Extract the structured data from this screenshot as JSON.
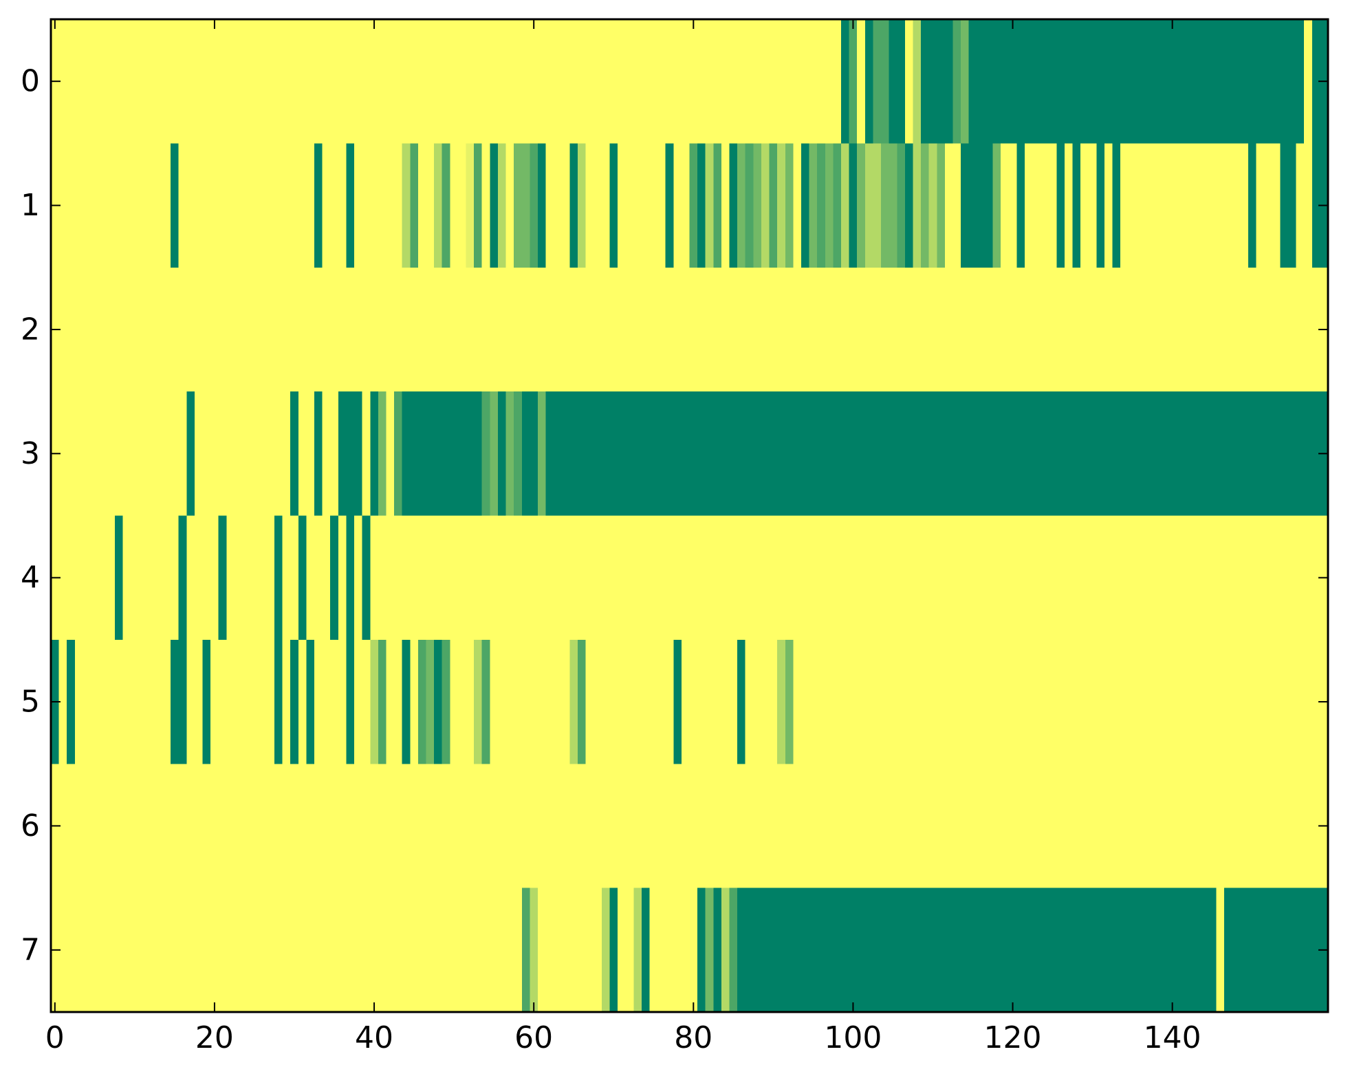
{
  "chart_data": {
    "type": "heatmap",
    "colormap": "summer_r",
    "colors": {
      "low": "#ffff66",
      "high": "#008066"
    },
    "value_range": [
      0,
      1
    ],
    "n_columns": 160,
    "rows": [
      0,
      1,
      2,
      3,
      4,
      5,
      6,
      7
    ],
    "xlim": [
      -0.5,
      159.5
    ],
    "ylim": [
      -0.5,
      7.5
    ],
    "x_ticks": [
      0,
      20,
      40,
      60,
      80,
      100,
      120,
      140
    ],
    "x_tick_labels": [
      "0",
      "20",
      "40",
      "60",
      "80",
      "100",
      "120",
      "140"
    ],
    "y_ticks": [
      0,
      1,
      2,
      3,
      4,
      5,
      6,
      7
    ],
    "y_tick_labels": [
      "0",
      "1",
      "2",
      "3",
      "4",
      "5",
      "6",
      "7"
    ],
    "grid": false,
    "segments_note_fields": [
      "row",
      "start_column",
      "end_column_exclusive",
      "value"
    ],
    "segments": [
      [
        0,
        99,
        100,
        1
      ],
      [
        0,
        100,
        101,
        0.7
      ],
      [
        0,
        101,
        102,
        0
      ],
      [
        0,
        102,
        103,
        1
      ],
      [
        0,
        103,
        105,
        0.7
      ],
      [
        0,
        105,
        106,
        1
      ],
      [
        0,
        106,
        107,
        1
      ],
      [
        0,
        107,
        108,
        0
      ],
      [
        0,
        108,
        109,
        0.3
      ],
      [
        0,
        109,
        113,
        1
      ],
      [
        0,
        113,
        114,
        0.7
      ],
      [
        0,
        114,
        115,
        0.55
      ],
      [
        0,
        115,
        157,
        1
      ],
      [
        0,
        158,
        160,
        1
      ],
      [
        1,
        15,
        16,
        1
      ],
      [
        1,
        33,
        34,
        1
      ],
      [
        1,
        37,
        38,
        1
      ],
      [
        1,
        44,
        45,
        0.3
      ],
      [
        1,
        45,
        46,
        0.7
      ],
      [
        1,
        48,
        49,
        0.3
      ],
      [
        1,
        49,
        50,
        0.7
      ],
      [
        1,
        52,
        53,
        0.1
      ],
      [
        1,
        53,
        54,
        0.7
      ],
      [
        1,
        55,
        56,
        1
      ],
      [
        1,
        56,
        57,
        0.3
      ],
      [
        1,
        58,
        60,
        0.55
      ],
      [
        1,
        60,
        61,
        0.7
      ],
      [
        1,
        61,
        62,
        1
      ],
      [
        1,
        65,
        66,
        1
      ],
      [
        1,
        66,
        67,
        0.3
      ],
      [
        1,
        70,
        71,
        1
      ],
      [
        1,
        77,
        78,
        1
      ],
      [
        1,
        80,
        81,
        0.7
      ],
      [
        1,
        81,
        82,
        1
      ],
      [
        1,
        82,
        83,
        0.3
      ],
      [
        1,
        83,
        84,
        0.7
      ],
      [
        1,
        85,
        86,
        1
      ],
      [
        1,
        86,
        87,
        0.55
      ],
      [
        1,
        87,
        88,
        0.7
      ],
      [
        1,
        88,
        89,
        0.55
      ],
      [
        1,
        89,
        90,
        0.3
      ],
      [
        1,
        90,
        91,
        0.7
      ],
      [
        1,
        91,
        92,
        0.3
      ],
      [
        1,
        92,
        93,
        0.55
      ],
      [
        1,
        94,
        95,
        1
      ],
      [
        1,
        95,
        96,
        0.55
      ],
      [
        1,
        96,
        97,
        0.7
      ],
      [
        1,
        97,
        98,
        0.55
      ],
      [
        1,
        98,
        99,
        0.7
      ],
      [
        1,
        99,
        100,
        0.3
      ],
      [
        1,
        100,
        101,
        1
      ],
      [
        1,
        101,
        102,
        0.55
      ],
      [
        1,
        102,
        103,
        0.3
      ],
      [
        1,
        103,
        104,
        0.3
      ],
      [
        1,
        104,
        105,
        0.55
      ],
      [
        1,
        105,
        106,
        0.55
      ],
      [
        1,
        106,
        107,
        0.7
      ],
      [
        1,
        107,
        108,
        1
      ],
      [
        1,
        108,
        109,
        0.3
      ],
      [
        1,
        109,
        110,
        0.55
      ],
      [
        1,
        110,
        111,
        0.3
      ],
      [
        1,
        111,
        112,
        0.55
      ],
      [
        1,
        114,
        118,
        1
      ],
      [
        1,
        118,
        119,
        0.55
      ],
      [
        1,
        121,
        122,
        1
      ],
      [
        1,
        126,
        127,
        1
      ],
      [
        1,
        128,
        129,
        1
      ],
      [
        1,
        131,
        132,
        1
      ],
      [
        1,
        133,
        134,
        1
      ],
      [
        1,
        150,
        151,
        1
      ],
      [
        1,
        154,
        156,
        1
      ],
      [
        1,
        158,
        160,
        1
      ],
      [
        3,
        17,
        18,
        1
      ],
      [
        3,
        30,
        31,
        1
      ],
      [
        3,
        33,
        34,
        1
      ],
      [
        3,
        36,
        39,
        1
      ],
      [
        3,
        40,
        41,
        1
      ],
      [
        3,
        41,
        42,
        0.55
      ],
      [
        3,
        43,
        44,
        0.7
      ],
      [
        3,
        44,
        54,
        1
      ],
      [
        3,
        54,
        55,
        0.7
      ],
      [
        3,
        55,
        56,
        0.55
      ],
      [
        3,
        56,
        57,
        1
      ],
      [
        3,
        57,
        58,
        0.55
      ],
      [
        3,
        58,
        59,
        0.7
      ],
      [
        3,
        59,
        61,
        1
      ],
      [
        3,
        61,
        62,
        0.55
      ],
      [
        3,
        62,
        160,
        1
      ],
      [
        4,
        8,
        9,
        1
      ],
      [
        4,
        16,
        17,
        1
      ],
      [
        4,
        21,
        22,
        1
      ],
      [
        4,
        28,
        29,
        1
      ],
      [
        4,
        31,
        32,
        1
      ],
      [
        4,
        35,
        36,
        1
      ],
      [
        4,
        37,
        38,
        1
      ],
      [
        4,
        39,
        40,
        1
      ],
      [
        5,
        0,
        1,
        1
      ],
      [
        5,
        2,
        3,
        1
      ],
      [
        5,
        15,
        17,
        1
      ],
      [
        5,
        19,
        20,
        1
      ],
      [
        5,
        28,
        29,
        1
      ],
      [
        5,
        30,
        31,
        1
      ],
      [
        5,
        32,
        33,
        1
      ],
      [
        5,
        37,
        38,
        1
      ],
      [
        5,
        40,
        41,
        0.3
      ],
      [
        5,
        41,
        42,
        0.7
      ],
      [
        5,
        44,
        45,
        1
      ],
      [
        5,
        46,
        47,
        0.7
      ],
      [
        5,
        47,
        48,
        0.55
      ],
      [
        5,
        48,
        49,
        1
      ],
      [
        5,
        49,
        50,
        0.7
      ],
      [
        5,
        53,
        54,
        0.3
      ],
      [
        5,
        54,
        55,
        0.7
      ],
      [
        5,
        65,
        66,
        0.3
      ],
      [
        5,
        66,
        67,
        0.7
      ],
      [
        5,
        78,
        79,
        1
      ],
      [
        5,
        86,
        87,
        1
      ],
      [
        5,
        91,
        92,
        0.3
      ],
      [
        5,
        92,
        93,
        0.55
      ],
      [
        7,
        59,
        60,
        0.7
      ],
      [
        7,
        60,
        61,
        0.3
      ],
      [
        7,
        69,
        70,
        0.3
      ],
      [
        7,
        70,
        71,
        1
      ],
      [
        7,
        73,
        74,
        0.3
      ],
      [
        7,
        74,
        75,
        1
      ],
      [
        7,
        81,
        82,
        1
      ],
      [
        7,
        82,
        83,
        0.55
      ],
      [
        7,
        83,
        84,
        1
      ],
      [
        7,
        84,
        85,
        0.3
      ],
      [
        7,
        85,
        86,
        0.7
      ],
      [
        7,
        86,
        146,
        1
      ],
      [
        7,
        147,
        160,
        1
      ]
    ]
  }
}
